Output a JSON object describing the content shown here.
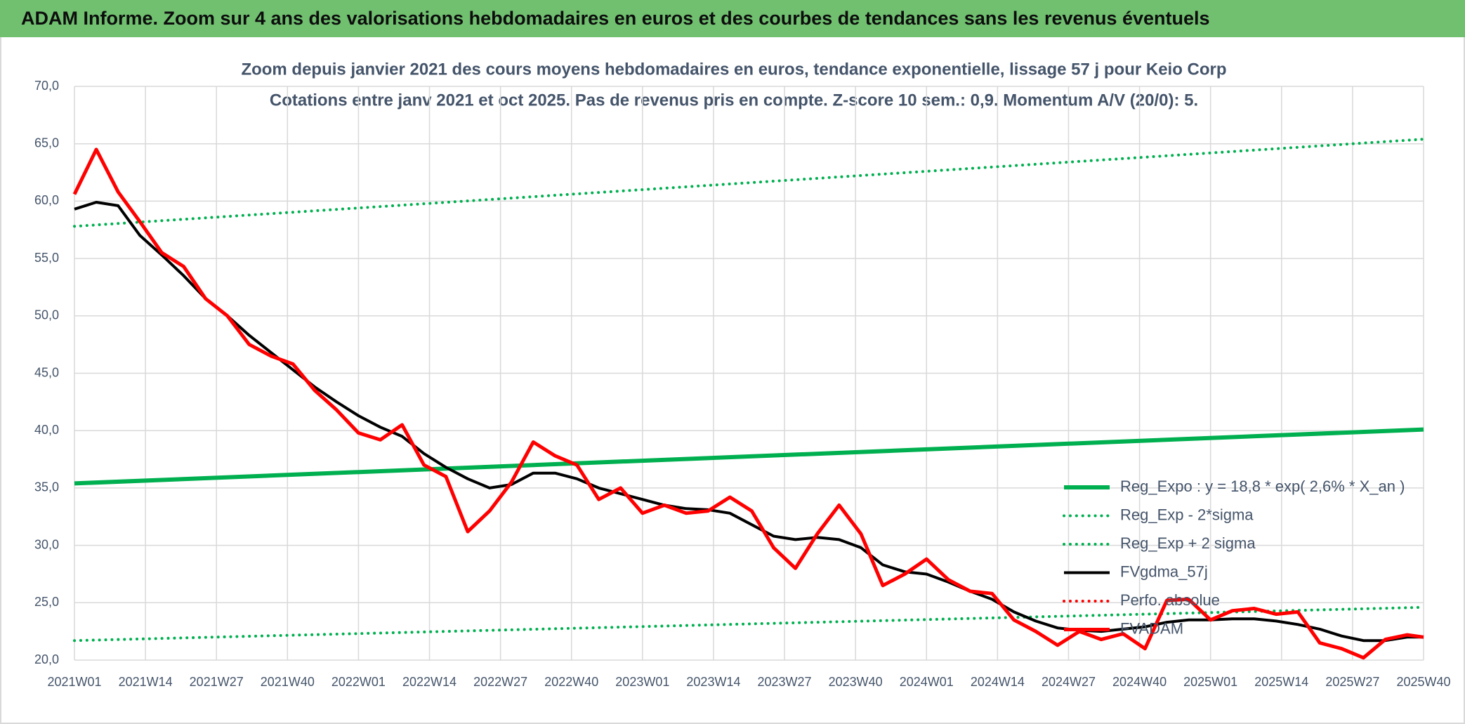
{
  "header": {
    "title": "ADAM Informe. Zoom sur 4 ans des valorisations hebdomadaires en euros et des courbes de tendances sans les revenus éventuels"
  },
  "chart_data": {
    "type": "line",
    "title": "Zoom depuis janvier 2021 des cours moyens hebdomadaires en euros, tendance exponentielle, lissage 57 j pour Keio Corp",
    "subtitle": "Cotations entre janv 2021 et oct 2025. Pas de revenus pris en compte. Z-score 10 sem.: 0,9. Momentum A/V (20/0): 5.",
    "xlim": [
      0,
      247
    ],
    "xticks": [
      {
        "value": 0,
        "label": "2021W01"
      },
      {
        "value": 13,
        "label": "2021W14"
      },
      {
        "value": 26,
        "label": "2021W27"
      },
      {
        "value": 39,
        "label": "2021W40"
      },
      {
        "value": 52,
        "label": "2022W01"
      },
      {
        "value": 65,
        "label": "2022W14"
      },
      {
        "value": 78,
        "label": "2022W27"
      },
      {
        "value": 91,
        "label": "2022W40"
      },
      {
        "value": 104,
        "label": "2023W01"
      },
      {
        "value": 117,
        "label": "2023W14"
      },
      {
        "value": 130,
        "label": "2023W27"
      },
      {
        "value": 143,
        "label": "2023W40"
      },
      {
        "value": 156,
        "label": "2024W01"
      },
      {
        "value": 169,
        "label": "2024W14"
      },
      {
        "value": 182,
        "label": "2024W27"
      },
      {
        "value": 195,
        "label": "2024W40"
      },
      {
        "value": 208,
        "label": "2025W01"
      },
      {
        "value": 221,
        "label": "2025W14"
      },
      {
        "value": 234,
        "label": "2025W27"
      },
      {
        "value": 247,
        "label": "2025W40"
      }
    ],
    "ylim": [
      20,
      70
    ],
    "yticks": [
      {
        "value": 20,
        "label": "20,0"
      },
      {
        "value": 25,
        "label": "25,0"
      },
      {
        "value": 30,
        "label": "30,0"
      },
      {
        "value": 35,
        "label": "35,0"
      },
      {
        "value": 40,
        "label": "40,0"
      },
      {
        "value": 45,
        "label": "45,0"
      },
      {
        "value": 50,
        "label": "50,0"
      },
      {
        "value": 55,
        "label": "55,0"
      },
      {
        "value": 60,
        "label": "60,0"
      },
      {
        "value": 65,
        "label": "65,0"
      },
      {
        "value": 70,
        "label": "70,0"
      }
    ],
    "grid": true,
    "legend": "bottom-right",
    "x": [
      0,
      4,
      8,
      12,
      16,
      20,
      24,
      28,
      32,
      36,
      40,
      44,
      48,
      52,
      56,
      60,
      64,
      68,
      72,
      76,
      80,
      84,
      88,
      92,
      96,
      100,
      104,
      108,
      112,
      116,
      120,
      124,
      128,
      132,
      136,
      140,
      144,
      148,
      152,
      156,
      160,
      164,
      168,
      172,
      176,
      180,
      184,
      188,
      192,
      196,
      200,
      204,
      208,
      212,
      216,
      220,
      224,
      228,
      232,
      236,
      240,
      244,
      247
    ],
    "series": [
      {
        "name": "Reg_Expo : y = 18,8 * exp( 2,6% *  X_an )",
        "color": "#00b050",
        "style": "solid",
        "width": 6,
        "x": [
          0,
          247
        ],
        "values": [
          35.4,
          40.1
        ]
      },
      {
        "name": "Reg_Exp - 2*sigma",
        "color": "#00b050",
        "style": "dotted",
        "width": 4,
        "x": [
          0,
          247
        ],
        "values": [
          21.7,
          24.6
        ]
      },
      {
        "name": "Reg_Exp + 2 sigma",
        "color": "#00b050",
        "style": "dotted",
        "width": 4,
        "x": [
          0,
          247
        ],
        "values": [
          57.8,
          65.4
        ]
      },
      {
        "name": "FVgdma_57j",
        "color": "#000000",
        "style": "solid",
        "width": 4,
        "values": [
          59.3,
          59.9,
          59.6,
          57.0,
          55.3,
          53.5,
          51.5,
          50.0,
          48.3,
          46.8,
          45.3,
          43.8,
          42.5,
          41.3,
          40.3,
          39.5,
          38.0,
          36.8,
          35.8,
          35.0,
          35.3,
          36.3,
          36.3,
          35.8,
          35.0,
          34.5,
          34.0,
          33.5,
          33.2,
          33.1,
          32.8,
          31.8,
          30.8,
          30.5,
          30.7,
          30.5,
          29.8,
          28.3,
          27.7,
          27.5,
          26.8,
          26.0,
          25.3,
          24.2,
          23.4,
          22.8,
          22.6,
          22.5,
          22.7,
          22.9,
          23.3,
          23.5,
          23.5,
          23.6,
          23.6,
          23.4,
          23.1,
          22.7,
          22.1,
          21.7,
          21.7,
          22.0,
          22.0
        ]
      },
      {
        "name": "Perfo. absolue",
        "color": "#ff0000",
        "style": "dotted",
        "width": 4,
        "x": [],
        "values": []
      },
      {
        "name": "FVADAM",
        "color": "#ff0000",
        "style": "solid",
        "width": 5,
        "values": [
          60.6,
          64.5,
          60.8,
          58.2,
          55.5,
          54.3,
          51.5,
          50.0,
          47.5,
          46.5,
          45.8,
          43.5,
          41.8,
          39.8,
          39.2,
          40.5,
          37.0,
          36.0,
          31.2,
          33.0,
          35.5,
          39.0,
          37.8,
          37.0,
          34.0,
          35.0,
          32.8,
          33.5,
          32.8,
          33.0,
          34.2,
          33.0,
          29.8,
          28.0,
          31.0,
          33.5,
          31.0,
          26.5,
          27.5,
          28.8,
          27.0,
          26.0,
          25.8,
          23.5,
          22.5,
          21.3,
          22.5,
          21.8,
          22.3,
          21.0,
          25.2,
          25.3,
          23.5,
          24.3,
          24.5,
          24.0,
          24.2,
          21.5,
          21.0,
          20.2,
          21.8,
          22.2,
          22.0
        ]
      }
    ]
  }
}
